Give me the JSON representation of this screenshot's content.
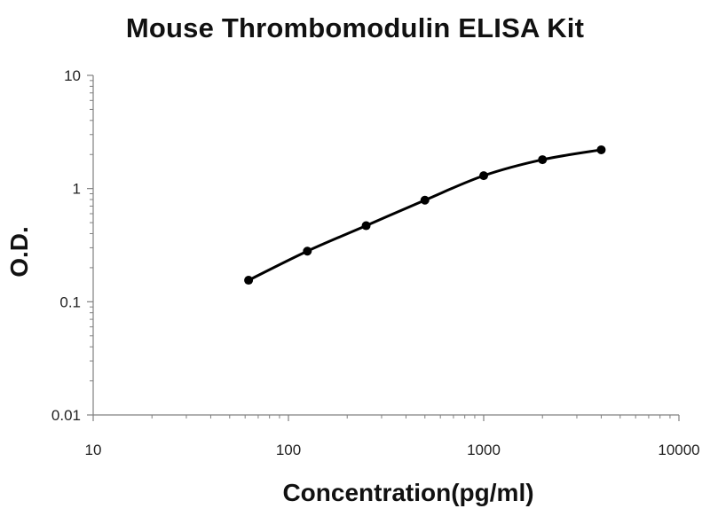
{
  "chart_data": {
    "type": "line",
    "title": "Mouse Thrombomodulin ELISA Kit",
    "xlabel": "Concentration(pg/ml)",
    "ylabel": "O.D.",
    "x_scale": "log",
    "y_scale": "log",
    "xlim": [
      10,
      10000
    ],
    "ylim": [
      0.01,
      10
    ],
    "x_ticks": [
      "10",
      "100",
      "1000",
      "10000"
    ],
    "y_ticks": [
      "0.01",
      "0.1",
      "1",
      "10"
    ],
    "grid": false,
    "legend": "none",
    "series": [
      {
        "x": [
          62.5,
          125,
          250,
          500,
          1000,
          2000,
          4000
        ],
        "y": [
          0.155,
          0.28,
          0.47,
          0.79,
          1.3,
          1.8,
          2.2
        ],
        "marker": "circle",
        "line": "smooth",
        "color": "#000000"
      }
    ]
  }
}
